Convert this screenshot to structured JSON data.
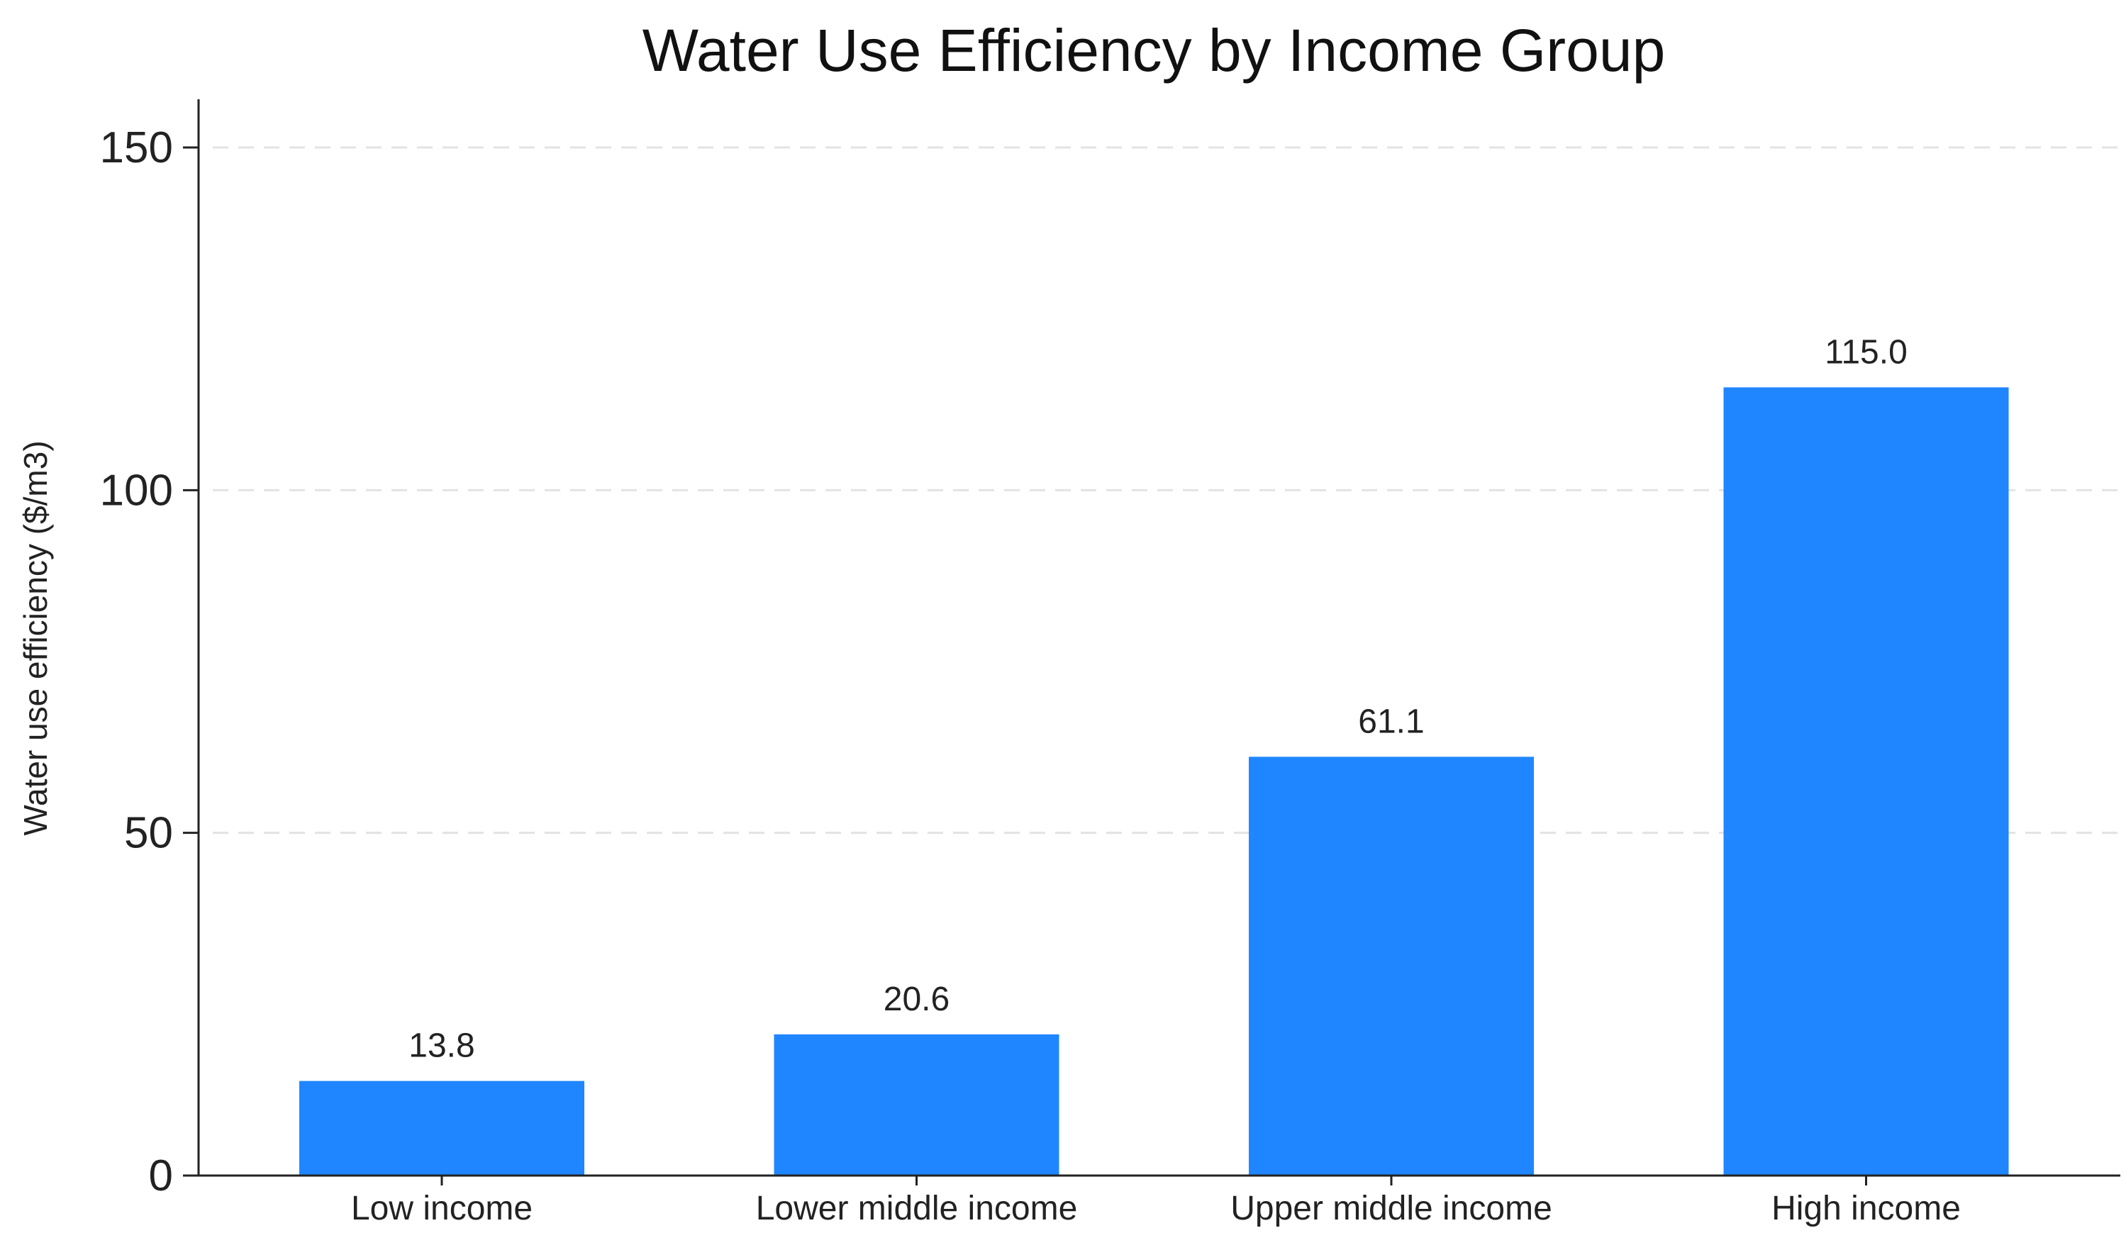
{
  "chart_data": {
    "type": "bar",
    "title": "Water Use Efficiency by Income Group",
    "xlabel": "",
    "ylabel": "Water use efficiency ($/m3)",
    "categories": [
      "Low income",
      "Lower middle income",
      "Upper middle income",
      "High income"
    ],
    "values": [
      13.8,
      20.6,
      61.1,
      115.0
    ],
    "value_labels": [
      "13.8",
      "20.6",
      "61.1",
      "115.0"
    ],
    "ylim": [
      0,
      150
    ],
    "yticks": [
      0,
      50,
      100,
      150
    ],
    "ytick_labels": [
      "0",
      "50",
      "100",
      "150"
    ],
    "grid": true,
    "grid_axis": "y",
    "grid_style": "dashed",
    "legend": "none",
    "bar_color": "#1f86ff",
    "grid_color": "#e3e3e3",
    "axis_color": "#222222"
  }
}
